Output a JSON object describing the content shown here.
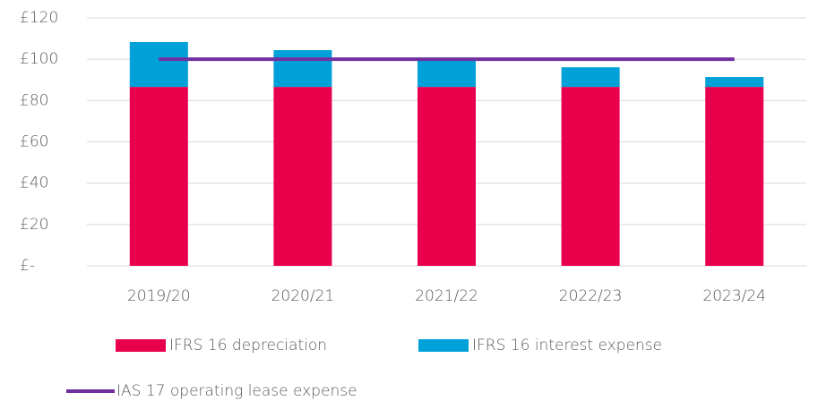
{
  "chart_data": {
    "type": "bar",
    "categories": [
      "2019/20",
      "2020/21",
      "2021/22",
      "2022/23",
      "2023/24"
    ],
    "stacked": true,
    "series": [
      {
        "name": "IFRS 16 depreciation",
        "color": "#e8004c",
        "values": [
          86.6,
          86.6,
          86.6,
          86.6,
          86.6
        ]
      },
      {
        "name": "IFRS 16 interest expense",
        "color": "#00a0d9",
        "values": [
          21.7,
          17.8,
          13.7,
          9.5,
          4.8
        ]
      },
      {
        "name": "IAS 17 operating lease expense",
        "color": "#7030a0",
        "type": "line",
        "values": [
          100,
          100,
          100,
          100,
          100
        ]
      }
    ],
    "ylim": [
      0,
      120
    ],
    "yticks": [
      {
        "value": 0,
        "label": "£-"
      },
      {
        "value": 20,
        "label": "£20"
      },
      {
        "value": 40,
        "label": "£40"
      },
      {
        "value": 60,
        "label": "£60"
      },
      {
        "value": 80,
        "label": "£80"
      },
      {
        "value": 100,
        "label": "£100"
      },
      {
        "value": 120,
        "label": "£120"
      }
    ],
    "grid": true,
    "legend": "bottom"
  }
}
